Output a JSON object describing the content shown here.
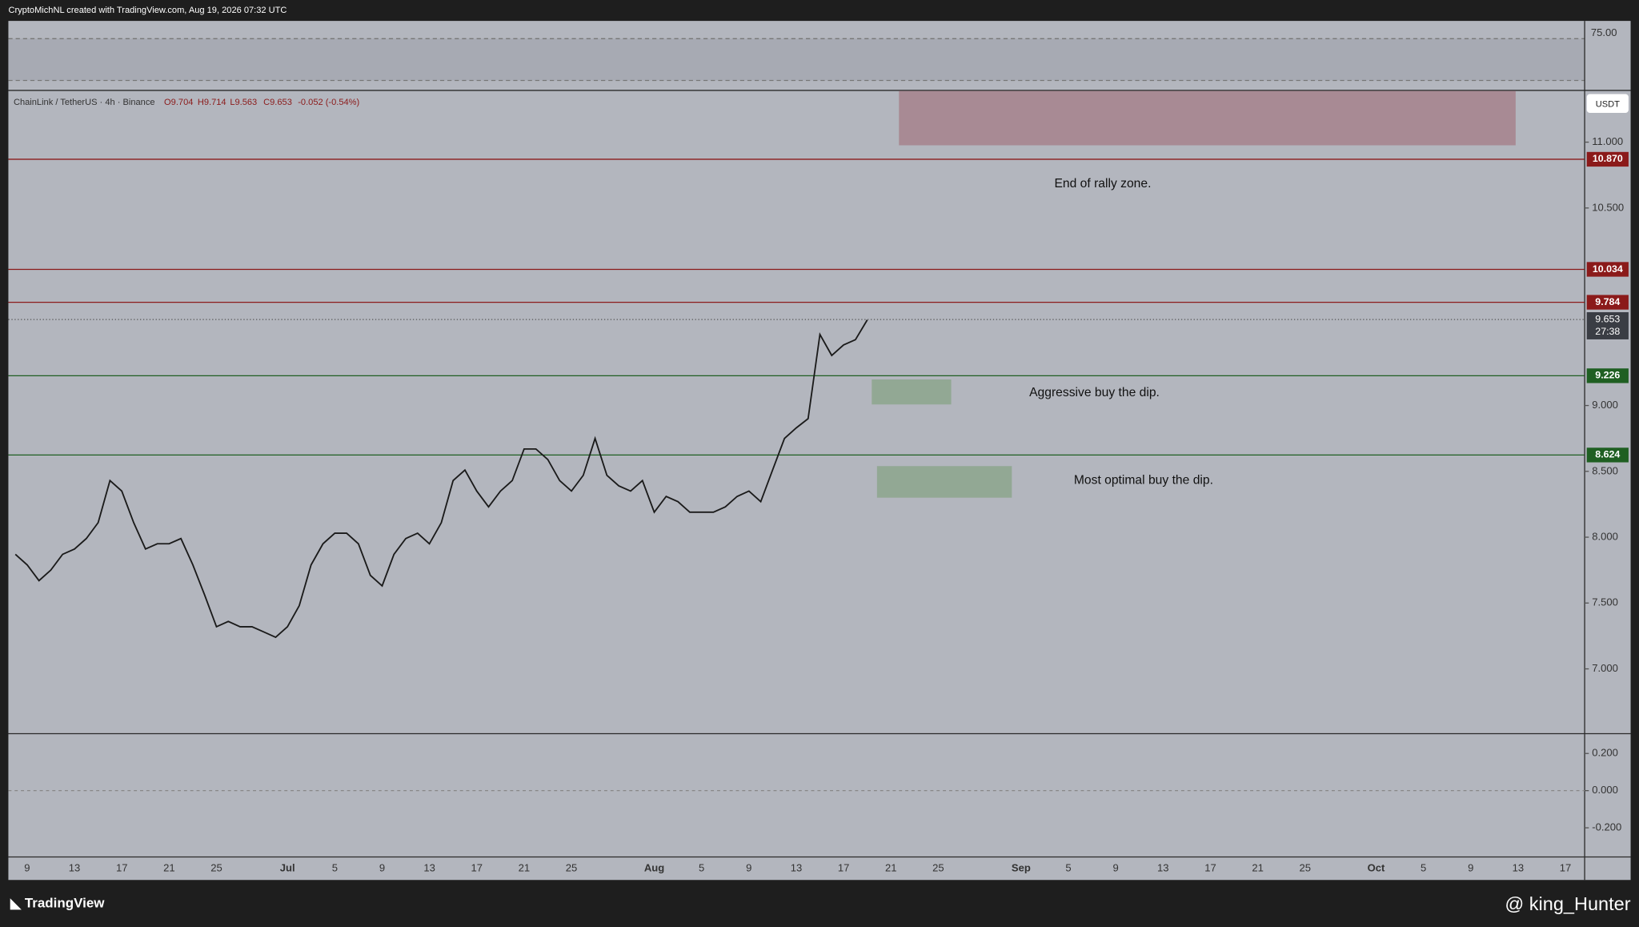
{
  "header": "CryptoMichNL created with TradingView.com, Aug 19, 2026 07:32 UTC",
  "chart_data": {
    "type": "line",
    "title": "ChainLink / TetherUS · 4h · Binance",
    "ohlc": {
      "open": "O9.704",
      "high": "H9.714",
      "low": "L9.563",
      "close": "C9.653",
      "change": "-0.052 (-0.54%)"
    },
    "currency": "USDT",
    "color": "#1a1a1a",
    "values": [
      7.87,
      7.79,
      7.67,
      7.75,
      7.87,
      7.91,
      7.99,
      8.11,
      8.43,
      8.35,
      8.11,
      7.91,
      7.95,
      7.95,
      7.99,
      7.79,
      7.56,
      7.32,
      7.36,
      7.32,
      7.32,
      7.28,
      7.24,
      7.32,
      7.48,
      7.79,
      7.95,
      8.03,
      8.03,
      7.95,
      7.71,
      7.63,
      7.87,
      7.99,
      8.03,
      7.95,
      8.11,
      8.43,
      8.51,
      8.35,
      8.23,
      8.35,
      8.43,
      8.67,
      8.67,
      8.59,
      8.43,
      8.35,
      8.47,
      8.75,
      8.47,
      8.39,
      8.35,
      8.43,
      8.19,
      8.31,
      8.27,
      8.19,
      8.19,
      8.19,
      8.23,
      8.31,
      8.35,
      8.27,
      8.51,
      8.75,
      8.83,
      8.9,
      9.54,
      9.38,
      9.46,
      9.5,
      9.65
    ],
    "ylim": [
      6.508,
      11.389
    ],
    "yticks": [
      {
        "value": 7,
        "label": "7.000"
      },
      {
        "value": 7.5,
        "label": "7.500"
      },
      {
        "value": 8,
        "label": "8.000"
      },
      {
        "value": 8.5,
        "label": "8.500"
      },
      {
        "value": 9,
        "label": "9.000"
      },
      {
        "value": 10.5,
        "label": "10.500"
      },
      {
        "value": 11,
        "label": "11.000"
      }
    ],
    "xticks": [
      "9",
      "13",
      "17",
      "21",
      "25",
      "Jul",
      "5",
      "9",
      "13",
      "17",
      "21",
      "25",
      "Aug",
      "5",
      "9",
      "13",
      "17",
      "21",
      "25",
      "Sep",
      "5",
      "9",
      "13",
      "17",
      "21",
      "25",
      "Oct",
      "5",
      "9",
      "13",
      "17"
    ],
    "levels": [
      {
        "value": 10.87,
        "label": "10.870",
        "color": "#8b1a1a"
      },
      {
        "value": 10.034,
        "label": "10.034",
        "color": "#8b1a1a"
      },
      {
        "value": 9.784,
        "label": "9.784",
        "color": "#8b1a1a"
      },
      {
        "value": 9.226,
        "label": "9.226",
        "color": "#1f5f22"
      },
      {
        "value": 8.624,
        "label": "8.624",
        "color": "#1f5f22"
      }
    ],
    "last_price": {
      "value": 9.653,
      "label": "9.653",
      "countdown": "27:38"
    },
    "zones": [
      {
        "top": 11.389,
        "bottom": 10.976,
        "color": "#a88a94"
      },
      {
        "top": 9.198,
        "bottom": 9.008,
        "color": "#92a894"
      },
      {
        "top": 8.54,
        "bottom": 8.3,
        "color": "#92a894"
      }
    ],
    "annotations": [
      "End of rally zone.",
      "Aggressive buy the dip.",
      "Most optimal buy the dip."
    ]
  },
  "rsi": {
    "label": "75.00"
  },
  "macd": {
    "ylim": [
      -0.357,
      0.301
    ],
    "yticks": [
      {
        "value": 0.2,
        "label": "0.200"
      },
      {
        "value": 0,
        "label": "0.000"
      },
      {
        "value": -0.2,
        "label": "-0.200"
      }
    ]
  },
  "footer": {
    "brand": "TradingView",
    "credit": "@ king_Hunter"
  }
}
